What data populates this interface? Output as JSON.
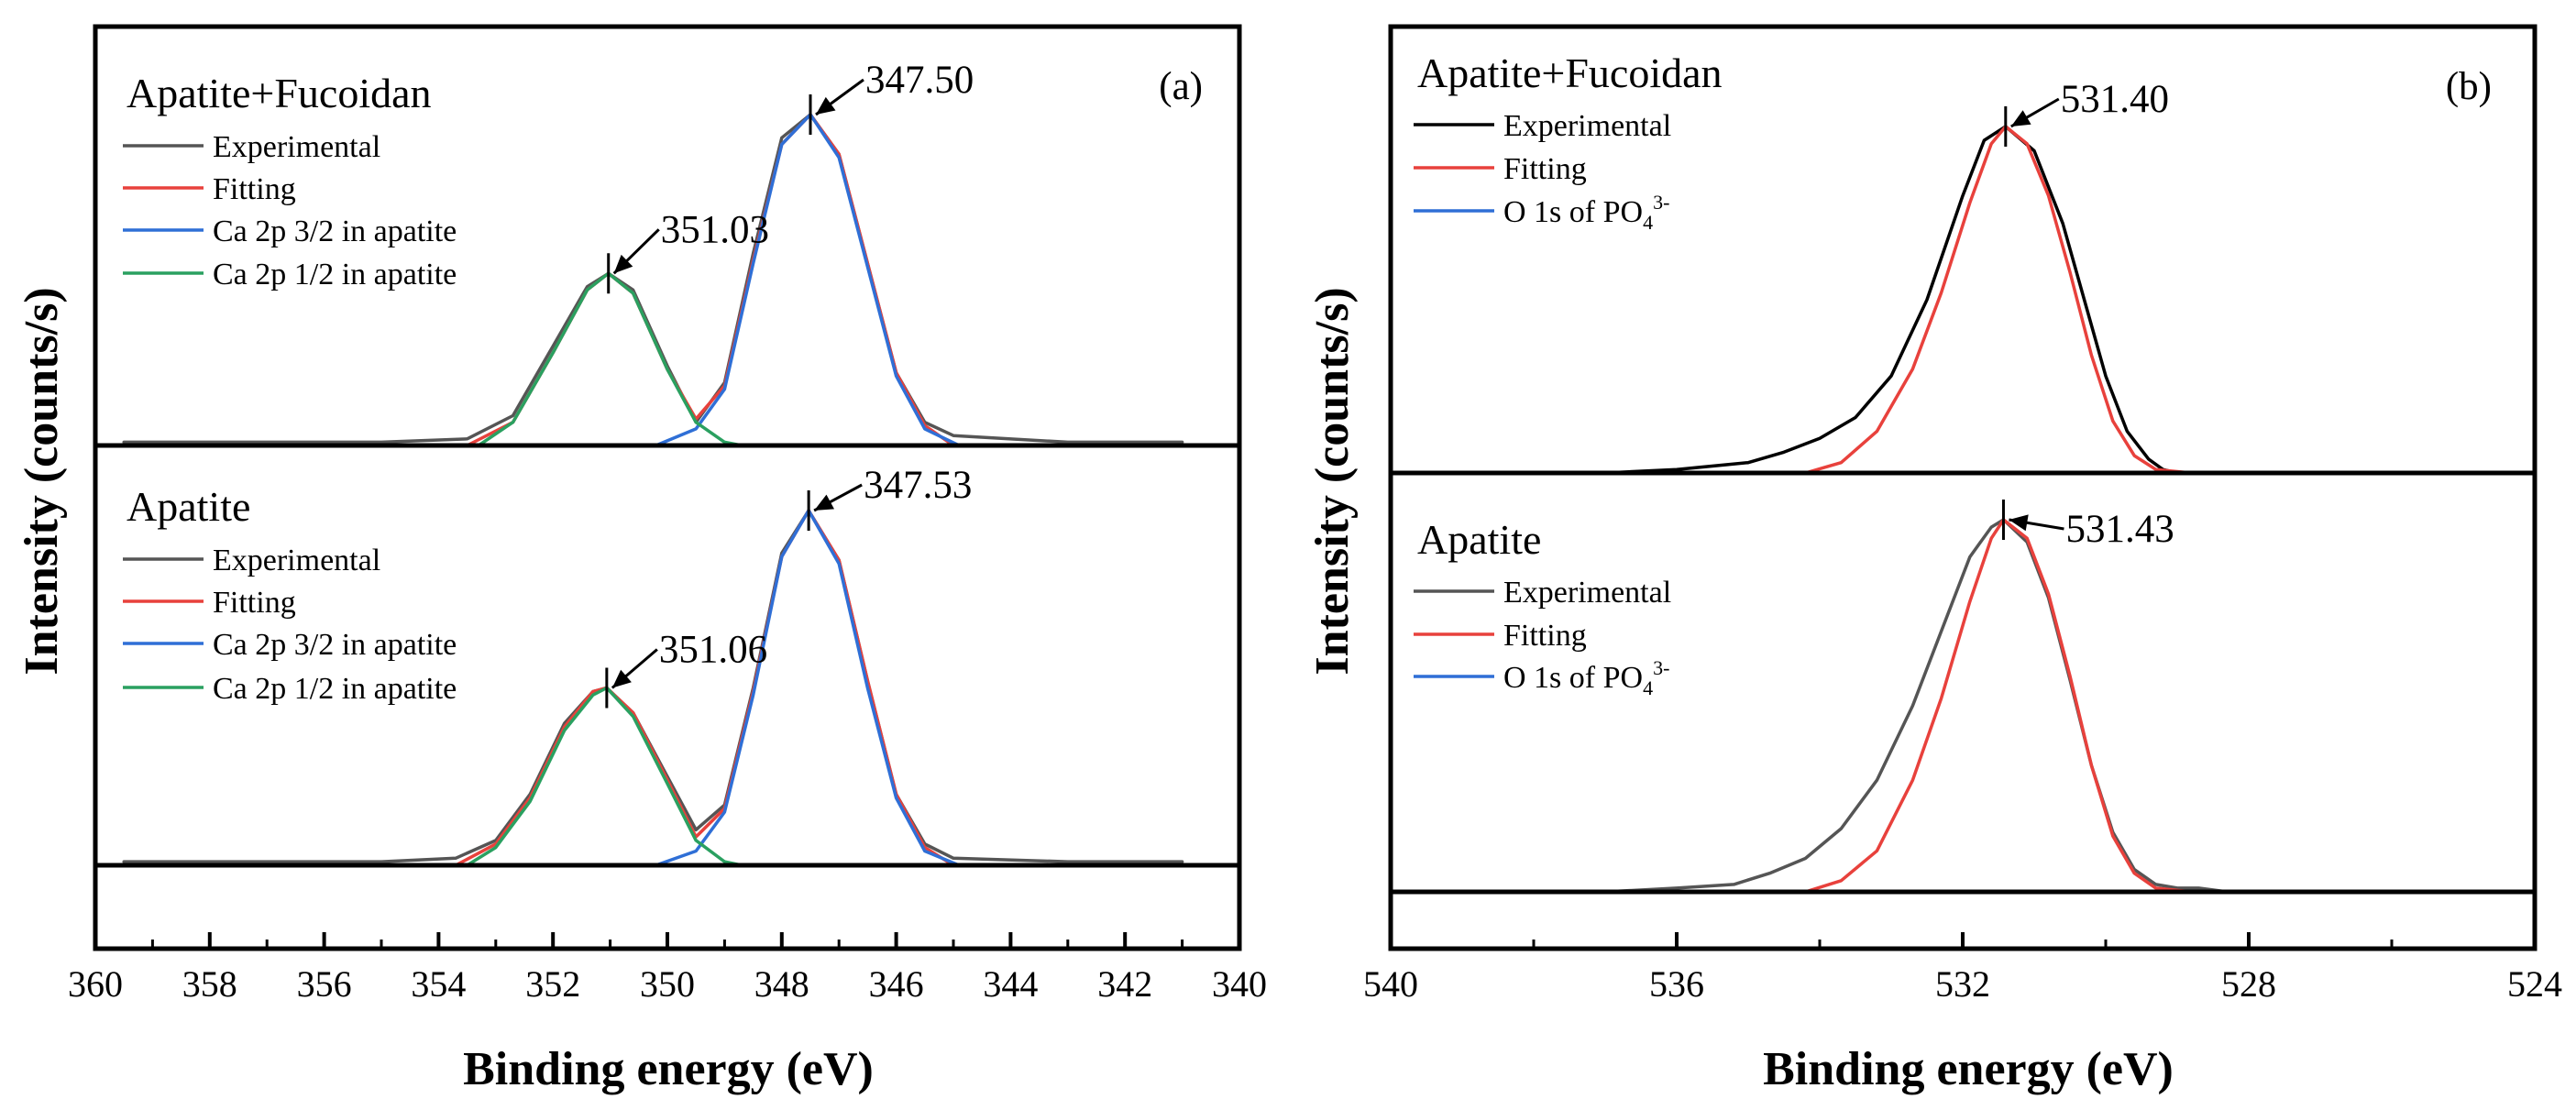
{
  "colors": {
    "experimental": "#555555",
    "experimental_top_b": "#000000",
    "fitting": "#e8413c",
    "ca_3_2": "#2f6fd6",
    "ca_1_2": "#2aa060",
    "o1s": "#2f6fd6",
    "frame": "#000000"
  },
  "chart_data": [
    {
      "id": "a",
      "type": "line",
      "panel_label": "(a)",
      "xlabel": "Binding energy (eV)",
      "ylabel": "Intensity (counts/s)",
      "xlim": [
        360,
        340
      ],
      "xticks": [
        "360",
        "358",
        "356",
        "354",
        "352",
        "350",
        "348",
        "346",
        "344",
        "342",
        "340"
      ],
      "xtick_values": [
        360,
        358,
        356,
        354,
        352,
        350,
        348,
        346,
        344,
        342,
        340
      ],
      "stacks": [
        {
          "title": "Apatite+Fucoidan",
          "legend": [
            "Experimental",
            "Fitting",
            "Ca 2p 3/2 in apatite",
            "Ca 2p 1/2 in apatite"
          ],
          "series": [
            {
              "name": "Experimental",
              "color_key": "experimental",
              "x": [
                359.5,
                357,
                355,
                353.5,
                352.7,
                352,
                351.4,
                351.03,
                350.6,
                350,
                349.5,
                349,
                348.5,
                348,
                347.5,
                347,
                346.5,
                346,
                345.5,
                345,
                343,
                341
              ],
              "y": [
                0.01,
                0.01,
                0.01,
                0.02,
                0.09,
                0.3,
                0.48,
                0.52,
                0.47,
                0.24,
                0.07,
                0.19,
                0.58,
                0.93,
                1.0,
                0.88,
                0.55,
                0.22,
                0.07,
                0.03,
                0.01,
                0.01
              ]
            },
            {
              "name": "Fitting",
              "color_key": "fitting",
              "x": [
                353.5,
                352.7,
                352,
                351.4,
                351.03,
                350.6,
                350,
                349.5,
                349,
                348.5,
                348,
                347.5,
                347,
                346.5,
                346,
                345.5,
                345
              ],
              "y": [
                0.0,
                0.07,
                0.28,
                0.47,
                0.52,
                0.46,
                0.23,
                0.08,
                0.18,
                0.56,
                0.91,
                1.0,
                0.88,
                0.55,
                0.22,
                0.06,
                0.0
              ]
            },
            {
              "name": "Ca 2p 3/2 in apatite",
              "color_key": "ca_3_2",
              "x": [
                350.2,
                349.5,
                349,
                348.5,
                348,
                347.5,
                347,
                346.5,
                346,
                345.5,
                344.9
              ],
              "y": [
                0.0,
                0.05,
                0.17,
                0.55,
                0.91,
                1.0,
                0.87,
                0.54,
                0.21,
                0.05,
                0.0
              ]
            },
            {
              "name": "Ca 2p 1/2 in apatite",
              "color_key": "ca_1_2",
              "x": [
                353.3,
                352.7,
                352,
                351.4,
                351.03,
                350.6,
                350,
                349.5,
                349,
                348.7
              ],
              "y": [
                0.0,
                0.07,
                0.28,
                0.47,
                0.52,
                0.46,
                0.23,
                0.07,
                0.01,
                0.0
              ]
            }
          ],
          "annotations": [
            {
              "text": "347.50",
              "x": 347.5,
              "y": 1.0
            },
            {
              "text": "351.03",
              "x": 351.03,
              "y": 0.52
            }
          ]
        },
        {
          "title": "Apatite",
          "legend": [
            "Experimental",
            "Fitting",
            "Ca 2p 3/2 in apatite",
            "Ca 2p 1/2 in apatite"
          ],
          "series": [
            {
              "name": "Experimental",
              "color_key": "experimental",
              "x": [
                359.5,
                357,
                355,
                353.7,
                353,
                352.4,
                351.8,
                351.3,
                351.06,
                350.6,
                350,
                349.5,
                349,
                348.5,
                348,
                347.53,
                347,
                346.5,
                346,
                345.5,
                345,
                343,
                341
              ],
              "y": [
                0.01,
                0.01,
                0.01,
                0.02,
                0.07,
                0.2,
                0.4,
                0.49,
                0.5,
                0.43,
                0.25,
                0.1,
                0.17,
                0.5,
                0.88,
                1.0,
                0.86,
                0.52,
                0.2,
                0.06,
                0.02,
                0.01,
                0.01
              ]
            },
            {
              "name": "Fitting",
              "color_key": "fitting",
              "x": [
                353.7,
                353,
                352.4,
                351.8,
                351.3,
                351.06,
                350.6,
                350,
                349.5,
                349,
                348.5,
                348,
                347.53,
                347,
                346.5,
                346,
                345.5,
                345
              ],
              "y": [
                0.0,
                0.06,
                0.19,
                0.39,
                0.49,
                0.5,
                0.43,
                0.24,
                0.08,
                0.16,
                0.49,
                0.87,
                1.0,
                0.86,
                0.52,
                0.2,
                0.05,
                0.0
              ]
            },
            {
              "name": "Ca 2p 3/2 in apatite",
              "color_key": "ca_3_2",
              "x": [
                350.2,
                349.5,
                349,
                348.5,
                348,
                347.53,
                347,
                346.5,
                346,
                345.5,
                344.9
              ],
              "y": [
                0.0,
                0.04,
                0.15,
                0.48,
                0.87,
                1.0,
                0.85,
                0.5,
                0.19,
                0.04,
                0.0
              ]
            },
            {
              "name": "Ca 2p 1/2 in apatite",
              "color_key": "ca_1_2",
              "x": [
                353.5,
                353,
                352.4,
                351.8,
                351.3,
                351.06,
                350.6,
                350,
                349.5,
                349,
                348.7
              ],
              "y": [
                0.0,
                0.05,
                0.18,
                0.38,
                0.48,
                0.5,
                0.42,
                0.23,
                0.07,
                0.01,
                0.0
              ]
            }
          ],
          "annotations": [
            {
              "text": "347.53",
              "x": 347.53,
              "y": 1.0
            },
            {
              "text": "351.06",
              "x": 351.06,
              "y": 0.5
            }
          ]
        }
      ]
    },
    {
      "id": "b",
      "type": "line",
      "panel_label": "(b)",
      "xlabel": "Binding energy (eV)",
      "ylabel": "Intensity (counts/s)",
      "xlim": [
        540,
        524
      ],
      "xticks": [
        "540",
        "536",
        "532",
        "528",
        "524"
      ],
      "xtick_values": [
        540,
        536,
        532,
        528,
        524
      ],
      "minor_xticks": [
        538,
        534,
        530,
        526
      ],
      "stacks": [
        {
          "title": "Apatite+Fucoidan",
          "legend": [
            "Experimental",
            "Fitting",
            "O 1s of PO"
          ],
          "legend_superscript": "3-",
          "legend_subscript": "4",
          "series": [
            {
              "name": "Experimental",
              "color_key": "experimental_top_b",
              "x": [
                539.5,
                537,
                536,
                535,
                534.5,
                534,
                533.5,
                533,
                532.5,
                532,
                531.7,
                531.4,
                531,
                530.6,
                530.3,
                530,
                529.7,
                529.4,
                529.2,
                529,
                527,
                524.3
              ],
              "y": [
                0.0,
                0.0,
                0.01,
                0.03,
                0.06,
                0.1,
                0.16,
                0.28,
                0.5,
                0.8,
                0.96,
                1.0,
                0.93,
                0.72,
                0.5,
                0.28,
                0.12,
                0.04,
                0.01,
                0.0,
                0.0,
                0.0
              ]
            },
            {
              "name": "Fitting",
              "color_key": "fitting",
              "x": [
                534.2,
                533.7,
                533.2,
                532.7,
                532.3,
                531.9,
                531.6,
                531.4,
                531.1,
                530.8,
                530.5,
                530.2,
                529.9,
                529.6,
                529.3,
                528.8
              ],
              "y": [
                0.0,
                0.03,
                0.12,
                0.3,
                0.52,
                0.78,
                0.95,
                1.0,
                0.95,
                0.8,
                0.58,
                0.34,
                0.15,
                0.05,
                0.01,
                0.0
              ]
            }
          ],
          "annotations": [
            {
              "text": "531.40",
              "x": 531.4,
              "y": 1.0
            }
          ]
        },
        {
          "title": "Apatite",
          "legend": [
            "Experimental",
            "Fitting",
            "O 1s of PO"
          ],
          "legend_superscript": "3-",
          "legend_subscript": "4",
          "series": [
            {
              "name": "Experimental",
              "color_key": "experimental",
              "x": [
                539.5,
                537,
                536,
                535.2,
                534.7,
                534.2,
                533.7,
                533.2,
                532.7,
                532.3,
                531.9,
                531.6,
                531.43,
                531.1,
                530.8,
                530.5,
                530.2,
                529.9,
                529.6,
                529.3,
                529,
                528.7,
                528.3,
                527,
                524.3
              ],
              "y": [
                0.0,
                0.0,
                0.01,
                0.02,
                0.05,
                0.09,
                0.17,
                0.3,
                0.5,
                0.7,
                0.9,
                0.98,
                1.0,
                0.94,
                0.79,
                0.57,
                0.34,
                0.16,
                0.06,
                0.02,
                0.01,
                0.01,
                0.0,
                0.0,
                0.0
              ]
            },
            {
              "name": "Fitting",
              "color_key": "fitting",
              "x": [
                534.2,
                533.7,
                533.2,
                532.7,
                532.3,
                531.9,
                531.6,
                531.43,
                531.1,
                530.8,
                530.5,
                530.2,
                529.9,
                529.6,
                529.3,
                528.8
              ],
              "y": [
                0.0,
                0.03,
                0.11,
                0.3,
                0.52,
                0.78,
                0.95,
                1.0,
                0.95,
                0.8,
                0.58,
                0.34,
                0.15,
                0.05,
                0.01,
                0.0
              ]
            }
          ],
          "annotations": [
            {
              "text": "531.43",
              "x": 531.43,
              "y": 1.0
            }
          ]
        }
      ]
    }
  ]
}
